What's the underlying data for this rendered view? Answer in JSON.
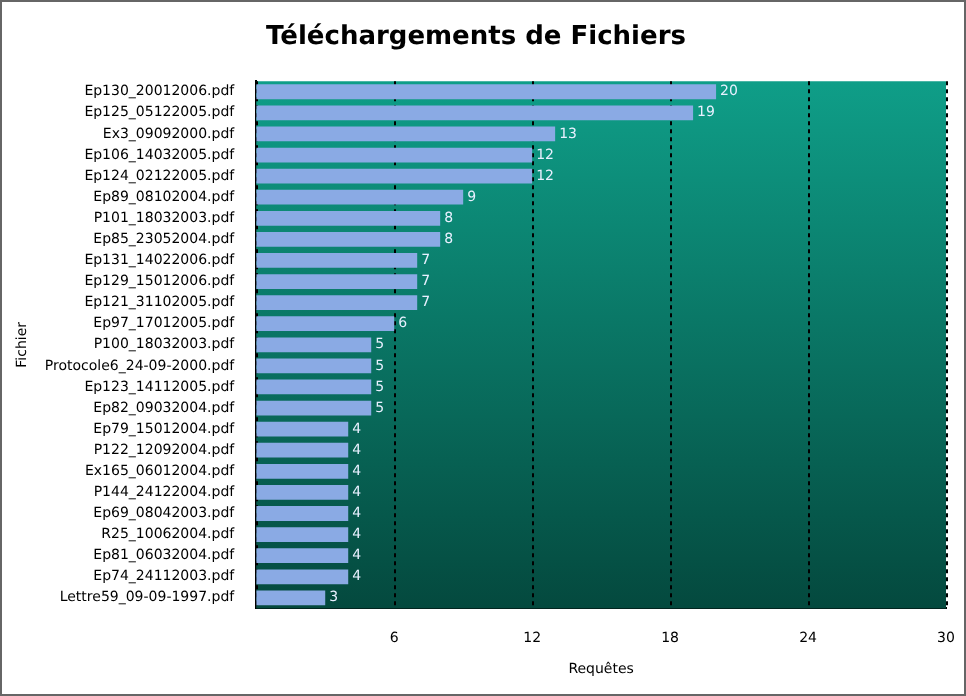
{
  "chart_data": {
    "type": "bar",
    "orientation": "horizontal",
    "title": "Téléchargements de Fichiers",
    "xlabel": "Requêtes",
    "ylabel": "Fichier",
    "categories": [
      "Ep130_20012006.pdf",
      "Ep125_05122005.pdf",
      "Ex3_09092000.pdf",
      "Ep106_14032005.pdf",
      "Ep124_02122005.pdf",
      "Ep89_08102004.pdf",
      "P101_18032003.pdf",
      "Ep85_23052004.pdf",
      "Ep131_14022006.pdf",
      "Ep129_15012006.pdf",
      "Ep121_31102005.pdf",
      "Ep97_17012005.pdf",
      "P100_18032003.pdf",
      "Protocole6_24-09-2000.pdf",
      "Ep123_14112005.pdf",
      "Ep82_09032004.pdf",
      "Ep79_15012004.pdf",
      "P122_12092004.pdf",
      "Ex165_06012004.pdf",
      "P144_24122004.pdf",
      "Ep69_08042003.pdf",
      "R25_10062004.pdf",
      "Ep81_06032004.pdf",
      "Ep74_24112003.pdf",
      "Lettre59_09-09-1997.pdf"
    ],
    "values": [
      20,
      19,
      13,
      12,
      12,
      9,
      8,
      8,
      7,
      7,
      7,
      6,
      5,
      5,
      5,
      5,
      4,
      4,
      4,
      4,
      4,
      4,
      4,
      4,
      3
    ],
    "color": "#8aaae4",
    "xlim": [
      0,
      30
    ],
    "xticks": [
      {
        "value": 0,
        "label": null
      },
      6,
      12,
      18,
      24,
      30
    ],
    "grid": "x",
    "data_labels": true
  }
}
